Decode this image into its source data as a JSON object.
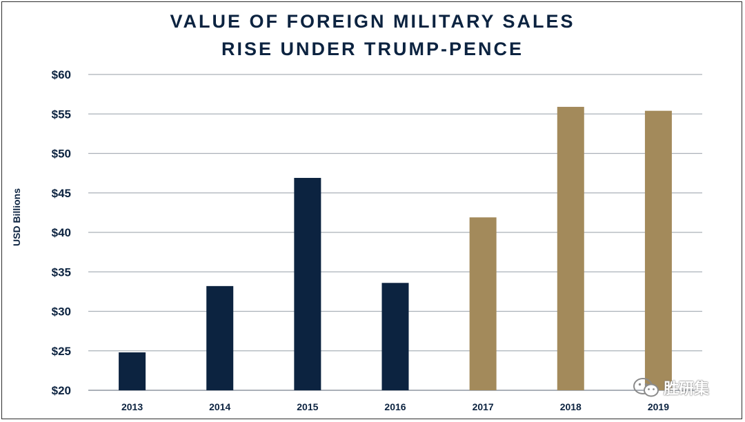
{
  "chart_data": {
    "type": "bar",
    "title_lines": [
      "VALUE OF FOREIGN MILITARY SALES",
      "RISE UNDER TRUMP-PENCE"
    ],
    "xlabel": "",
    "ylabel": "USD Billions",
    "categories": [
      "2013",
      "2014",
      "2015",
      "2016",
      "2017",
      "2018",
      "2019"
    ],
    "values": [
      24.8,
      33.2,
      46.9,
      33.6,
      41.9,
      55.9,
      55.4
    ],
    "bar_colors": [
      "#0c2340",
      "#0c2340",
      "#0c2340",
      "#0c2340",
      "#a38a5b",
      "#a38a5b",
      "#a38a5b"
    ],
    "ylim": [
      20,
      60
    ],
    "yticks": [
      20,
      25,
      30,
      35,
      40,
      45,
      50,
      55,
      60
    ],
    "ytick_labels": [
      "$20",
      "$25",
      "$30",
      "$35",
      "$40",
      "$45",
      "$50",
      "$55",
      "$60"
    ],
    "grid": true,
    "legend": "none"
  },
  "watermark": {
    "text": "胜研集",
    "icon": "wechat-icon"
  }
}
